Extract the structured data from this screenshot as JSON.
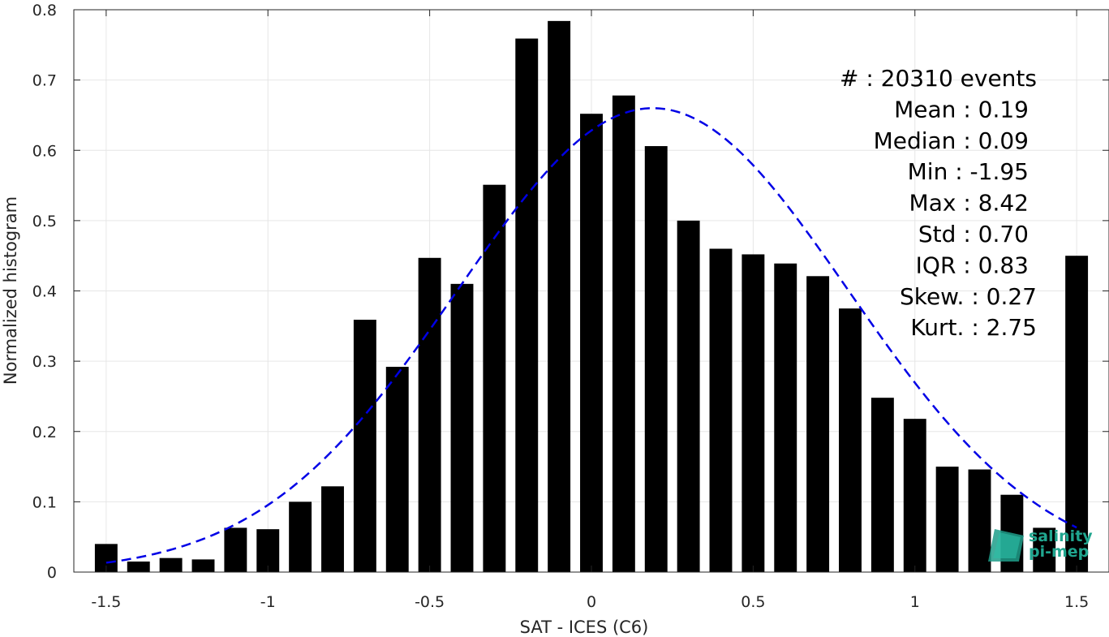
{
  "chart_data": {
    "type": "bar",
    "xlabel": "SAT - ICES (C6)",
    "ylabel": "Normalized histogram",
    "xlim": [
      -1.6,
      1.6
    ],
    "ylim": [
      0,
      0.8
    ],
    "x_ticks": [
      -1.5,
      -1,
      -0.5,
      0,
      0.5,
      1,
      1.5
    ],
    "x_tick_labels": [
      "-1.5",
      "-1",
      "-0.5",
      "0",
      "0.5",
      "1",
      "1.5"
    ],
    "y_ticks": [
      0,
      0.1,
      0.2,
      0.3,
      0.4,
      0.5,
      0.6,
      0.7,
      0.8
    ],
    "y_tick_labels": [
      "0",
      "0.1",
      "0.2",
      "0.3",
      "0.4",
      "0.5",
      "0.6",
      "0.7",
      "0.8"
    ],
    "grid": true,
    "bar_color": "#000000",
    "x": [
      -1.5,
      -1.4,
      -1.3,
      -1.2,
      -1.1,
      -1.0,
      -0.9,
      -0.8,
      -0.7,
      -0.6,
      -0.5,
      -0.4,
      -0.3,
      -0.2,
      -0.1,
      0.0,
      0.1,
      0.2,
      0.3,
      0.4,
      0.5,
      0.6,
      0.7,
      0.8,
      0.9,
      1.0,
      1.1,
      1.2,
      1.3,
      1.4,
      1.5
    ],
    "values": [
      0.04,
      0.015,
      0.02,
      0.018,
      0.063,
      0.061,
      0.1,
      0.122,
      0.359,
      0.292,
      0.447,
      0.41,
      0.551,
      0.759,
      0.784,
      0.652,
      0.678,
      0.606,
      0.5,
      0.46,
      0.452,
      0.439,
      0.421,
      0.375,
      0.248,
      0.218,
      0.15,
      0.146,
      0.11,
      0.063,
      0.45
    ],
    "fit_curve": {
      "type": "normal",
      "style": "dashed",
      "color": "#0000e6",
      "x_range": [
        -1.5,
        1.5
      ],
      "mean": 0.19,
      "std": 0.605,
      "peak": 0.66
    },
    "stats": [
      {
        "label": "#  : 20310 events"
      },
      {
        "label": "Mean : 0.19"
      },
      {
        "label": "Median : 0.09"
      },
      {
        "label": "Min : -1.95"
      },
      {
        "label": "Max : 8.42"
      },
      {
        "label": "Std : 0.70"
      },
      {
        "label": "IQR : 0.83"
      },
      {
        "label": "Skew. : 0.27"
      },
      {
        "label": "Kurt. : 2.75"
      }
    ]
  },
  "logo": {
    "line1": "salinity",
    "line2": "pi-mep",
    "color": "#20a68f"
  }
}
